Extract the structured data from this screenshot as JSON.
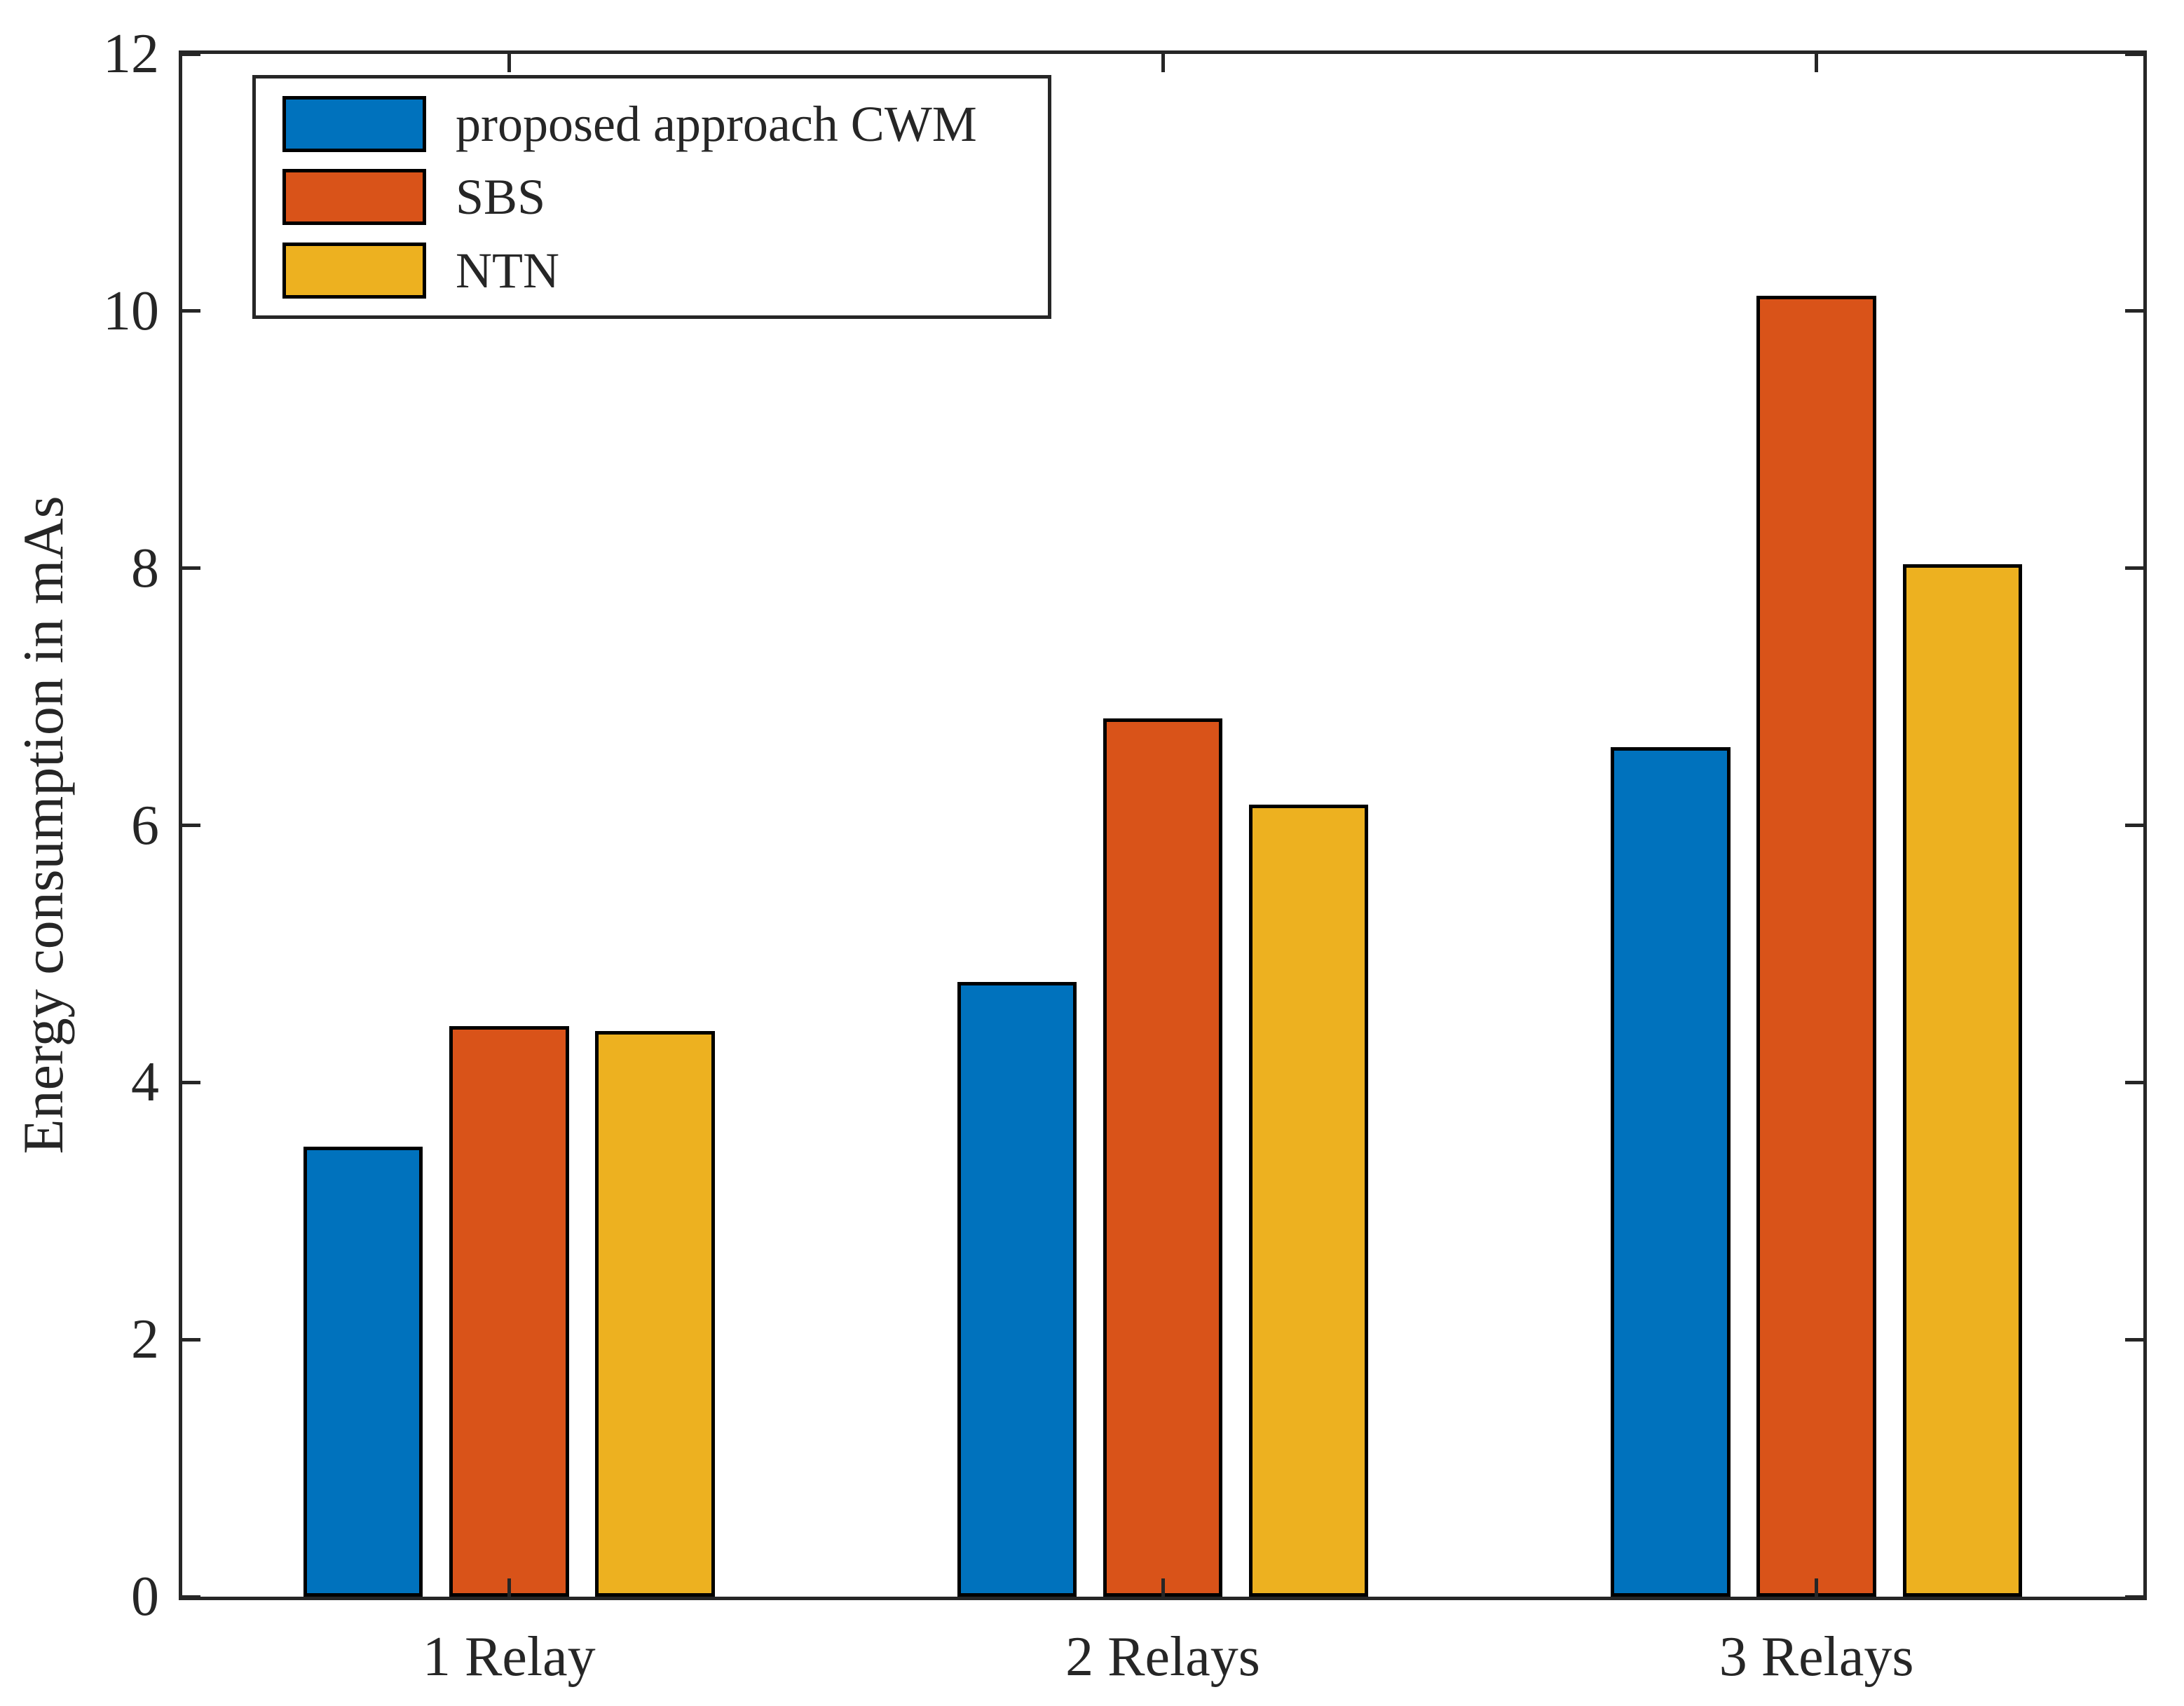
{
  "chart_data": {
    "type": "bar",
    "title": "",
    "xlabel": "",
    "ylabel": "Energy consumption in mAs",
    "categories": [
      "1 Relay",
      "2 Relays",
      "3 Relays"
    ],
    "series": [
      {
        "name": "proposed approach CWM",
        "color": "#0072BD",
        "values": [
          3.5,
          4.78,
          6.61
        ]
      },
      {
        "name": "SBS",
        "color": "#D95319",
        "values": [
          4.44,
          6.83,
          10.12
        ]
      },
      {
        "name": "NTN",
        "color": "#EDB120",
        "values": [
          4.4,
          6.16,
          8.03
        ]
      }
    ],
    "ylim": [
      0,
      12
    ],
    "yticks": [
      0,
      2,
      4,
      6,
      8,
      10,
      12
    ],
    "legend_position": "top-left",
    "grid": false,
    "bar_edge_color": "#000000",
    "axis_color": "#262626",
    "background_color": "#FFFFFF"
  }
}
